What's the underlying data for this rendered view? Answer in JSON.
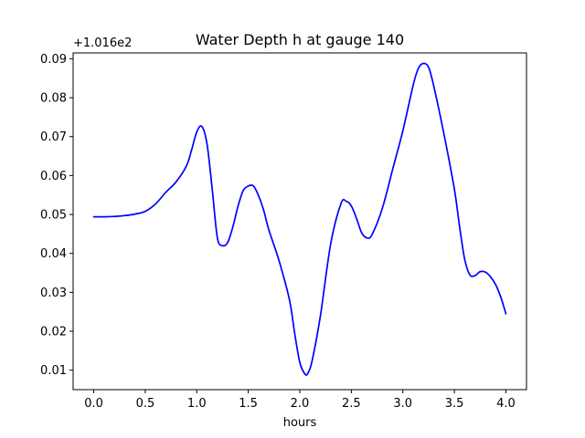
{
  "chart_data": {
    "type": "line",
    "title": "Water Depth h at gauge 140",
    "xlabel": "hours",
    "ylabel": "",
    "y_offset_label": "+1.016e2",
    "y_offset": 101.6,
    "xlim": [
      -0.2,
      4.2
    ],
    "ylim": [
      0.005,
      0.0915
    ],
    "xticks": [
      0.0,
      0.5,
      1.0,
      1.5,
      2.0,
      2.5,
      3.0,
      3.5,
      4.0
    ],
    "xtick_labels": [
      "0.0",
      "0.5",
      "1.0",
      "1.5",
      "2.0",
      "2.5",
      "3.0",
      "3.5",
      "4.0"
    ],
    "yticks": [
      0.01,
      0.02,
      0.03,
      0.04,
      0.05,
      0.06,
      0.07,
      0.08,
      0.09
    ],
    "ytick_labels": [
      "0.01",
      "0.02",
      "0.03",
      "0.04",
      "0.05",
      "0.06",
      "0.07",
      "0.08",
      "0.09"
    ],
    "grid": false,
    "series": [
      {
        "color": "#0000ff",
        "x": [
          0.0,
          0.1,
          0.2,
          0.3,
          0.4,
          0.5,
          0.6,
          0.7,
          0.8,
          0.9,
          0.95,
          1.0,
          1.05,
          1.1,
          1.15,
          1.2,
          1.25,
          1.3,
          1.35,
          1.4,
          1.45,
          1.5,
          1.55,
          1.6,
          1.65,
          1.7,
          1.8,
          1.9,
          1.95,
          2.0,
          2.05,
          2.08,
          2.12,
          2.2,
          2.3,
          2.4,
          2.45,
          2.5,
          2.55,
          2.6,
          2.65,
          2.7,
          2.8,
          2.9,
          3.0,
          3.1,
          3.15,
          3.2,
          3.25,
          3.3,
          3.4,
          3.5,
          3.55,
          3.6,
          3.65,
          3.7,
          3.75,
          3.8,
          3.85,
          3.9,
          3.95,
          4.0
        ],
        "y": [
          0.0494,
          0.0494,
          0.0495,
          0.0497,
          0.0501,
          0.0508,
          0.0527,
          0.0557,
          0.0584,
          0.0625,
          0.0666,
          0.0712,
          0.0726,
          0.068,
          0.0565,
          0.044,
          0.042,
          0.0428,
          0.0468,
          0.0521,
          0.0561,
          0.0573,
          0.0573,
          0.0548,
          0.051,
          0.046,
          0.038,
          0.028,
          0.0195,
          0.012,
          0.009,
          0.0093,
          0.0125,
          0.024,
          0.0425,
          0.0528,
          0.0534,
          0.0522,
          0.049,
          0.0453,
          0.044,
          0.0448,
          0.0515,
          0.0615,
          0.0715,
          0.0832,
          0.0875,
          0.0888,
          0.0878,
          0.083,
          0.0705,
          0.0565,
          0.047,
          0.0385,
          0.0345,
          0.0343,
          0.0353,
          0.0352,
          0.034,
          0.032,
          0.0288,
          0.0245
        ]
      }
    ]
  }
}
